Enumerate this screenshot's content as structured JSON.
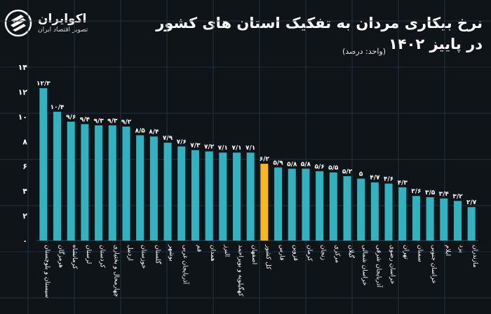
{
  "logo": {
    "name": "اکوایران",
    "tagline": "تصویر اقتصاد ایران"
  },
  "header": {
    "title_line1": "نرخ بیکاری مردان به تفکیک استان های کشور",
    "title_line2": "در پاییز ۱۴۰۲",
    "unit": "(واحد: درصد)"
  },
  "colors": {
    "bar": "#2fb3c1",
    "highlight": "#f7b81e",
    "background": "#0f1418",
    "grid": "#24303a"
  },
  "chart_data": {
    "type": "bar",
    "title": "نرخ بیکاری مردان به تفکیک استان های کشور در پاییز ۱۴۰۲",
    "unit": "(واحد: درصد)",
    "ylim": [
      0,
      14
    ],
    "yticks": [
      0,
      2,
      4,
      6,
      8,
      10,
      12,
      14
    ],
    "ytick_labels": [
      "۰",
      "۲",
      "۴",
      "۶",
      "۸",
      "۱۰",
      "۱۲",
      "۱۴"
    ],
    "grid": false,
    "highlight_category": "کل کشور",
    "categories": [
      "سیستان و بلوچستان",
      "هرمزگان",
      "کرمانشاه",
      "لرستان",
      "کردستان",
      "چهارمحال و بختیاری",
      "اردبیل",
      "خوزستان",
      "گلستان",
      "بوشهر",
      "آذربایجان غربی",
      "قم",
      "همدان",
      "البرز",
      "کهگیلویه و بویراحمد",
      "اصفهان",
      "کل کشور",
      "فارس",
      "قزوین",
      "کرمان",
      "زنجان",
      "مرکزی",
      "گیلان",
      "خراسان شمالی",
      "آذربایجان شرقی",
      "خراسان رضوی",
      "تهران",
      "سمنان",
      "خراسان جنوبی",
      "ایلام",
      "یزد",
      "مازندران"
    ],
    "values": [
      12.3,
      10.4,
      9.6,
      9.4,
      9.3,
      9.3,
      9.2,
      8.5,
      8.4,
      7.9,
      7.6,
      7.3,
      7.2,
      7.1,
      7.1,
      7.1,
      6.2,
      5.9,
      5.8,
      5.8,
      5.6,
      5.5,
      5.2,
      5.0,
      4.7,
      4.6,
      4.3,
      3.6,
      3.5,
      3.4,
      3.2,
      2.7
    ],
    "value_labels": [
      "۱۲/۳",
      "۱۰/۴",
      "۹/۶",
      "۹/۴",
      "۹/۳",
      "۹/۳",
      "۹/۲",
      "۸/۵",
      "۸/۴",
      "۷/۹",
      "۷/۶",
      "۷/۳",
      "۷/۲",
      "۷/۱",
      "۷/۱",
      "۷/۱",
      "۶/۲",
      "۵/۹",
      "۵/۸",
      "۵/۸",
      "۵/۶",
      "۵/۵",
      "۵/۲",
      "۵",
      "۴/۷",
      "۴/۶",
      "۴/۳",
      "۳/۶",
      "۳/۵",
      "۳/۴",
      "۳/۲",
      "۲/۷"
    ]
  }
}
